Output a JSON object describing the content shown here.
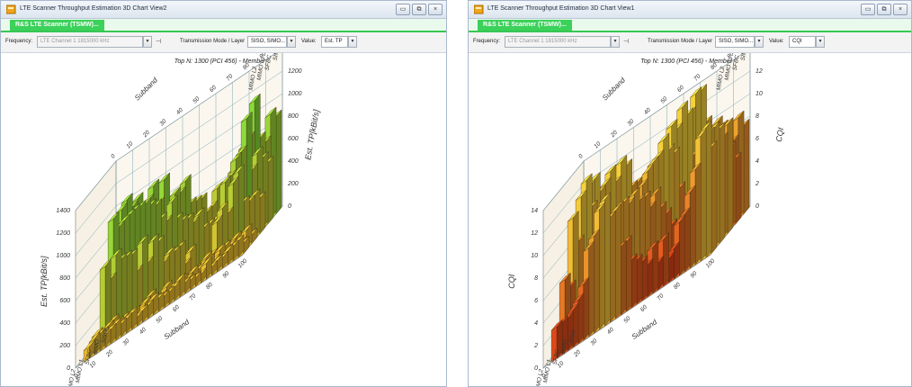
{
  "left": {
    "title": "LTE Scanner Throughput Estimation 3D Chart View2",
    "tab": "R&S LTE Scanner (TSMW)...",
    "frequency_label": "Frequency:",
    "frequency_value": "LTE Channel 1 1815000 kHz",
    "mode_label": "Transmission Mode / Layer",
    "mode_value": "SISO, SIMO...",
    "value_label": "Value:",
    "value_value": "Est. TP",
    "chart_title": "Top N: 1300 (PCI 456) - Member 1.",
    "z_axis_label": "Est. TP[kBit/s]",
    "y_axis_label": "Subband",
    "z_ticks": [
      "0",
      "200",
      "400",
      "600",
      "800",
      "1000",
      "1200",
      "1400"
    ],
    "x_ticks": [
      "0",
      "10",
      "20",
      "30",
      "40",
      "50",
      "60",
      "70",
      "80",
      "90",
      "100"
    ],
    "modes": [
      "SISO",
      "SIMO",
      "SFBC",
      "MIMO L1",
      "MIMO L2"
    ]
  },
  "right": {
    "title": "LTE Scanner Throughput Estimation 3D Chart View1",
    "tab": "R&S LTE Scanner (TSMW)...",
    "frequency_label": "Frequency:",
    "frequency_value": "LTE Channel 1 1815000 kHz",
    "mode_label": "Transmission Mode / Layer",
    "mode_value": "SISO, SIMO...",
    "value_label": "Value:",
    "value_value": "CQI",
    "chart_title": "Top N: 1300 (PCI 456) - Member 1.",
    "z_axis_label": "CQI",
    "y_axis_label": "Subband",
    "z_ticks": [
      "0",
      "2",
      "4",
      "6",
      "8",
      "10",
      "12",
      "14"
    ],
    "x_ticks": [
      "0",
      "10",
      "20",
      "30",
      "40",
      "50",
      "60",
      "70",
      "80",
      "90",
      "100"
    ],
    "modes": [
      "SISO",
      "SIMO",
      "SFBC",
      "MIMO L1",
      "MIMO L2"
    ]
  },
  "window_controls": [
    "minimize-button",
    "restore-button",
    "close-button"
  ],
  "colors": {
    "tab_green": "#3bd15a",
    "tp_low": "#f5b82e",
    "tp_high": "#7ee03a",
    "cqi_low": "#d9200f",
    "cqi_high": "#f5d23a"
  }
}
